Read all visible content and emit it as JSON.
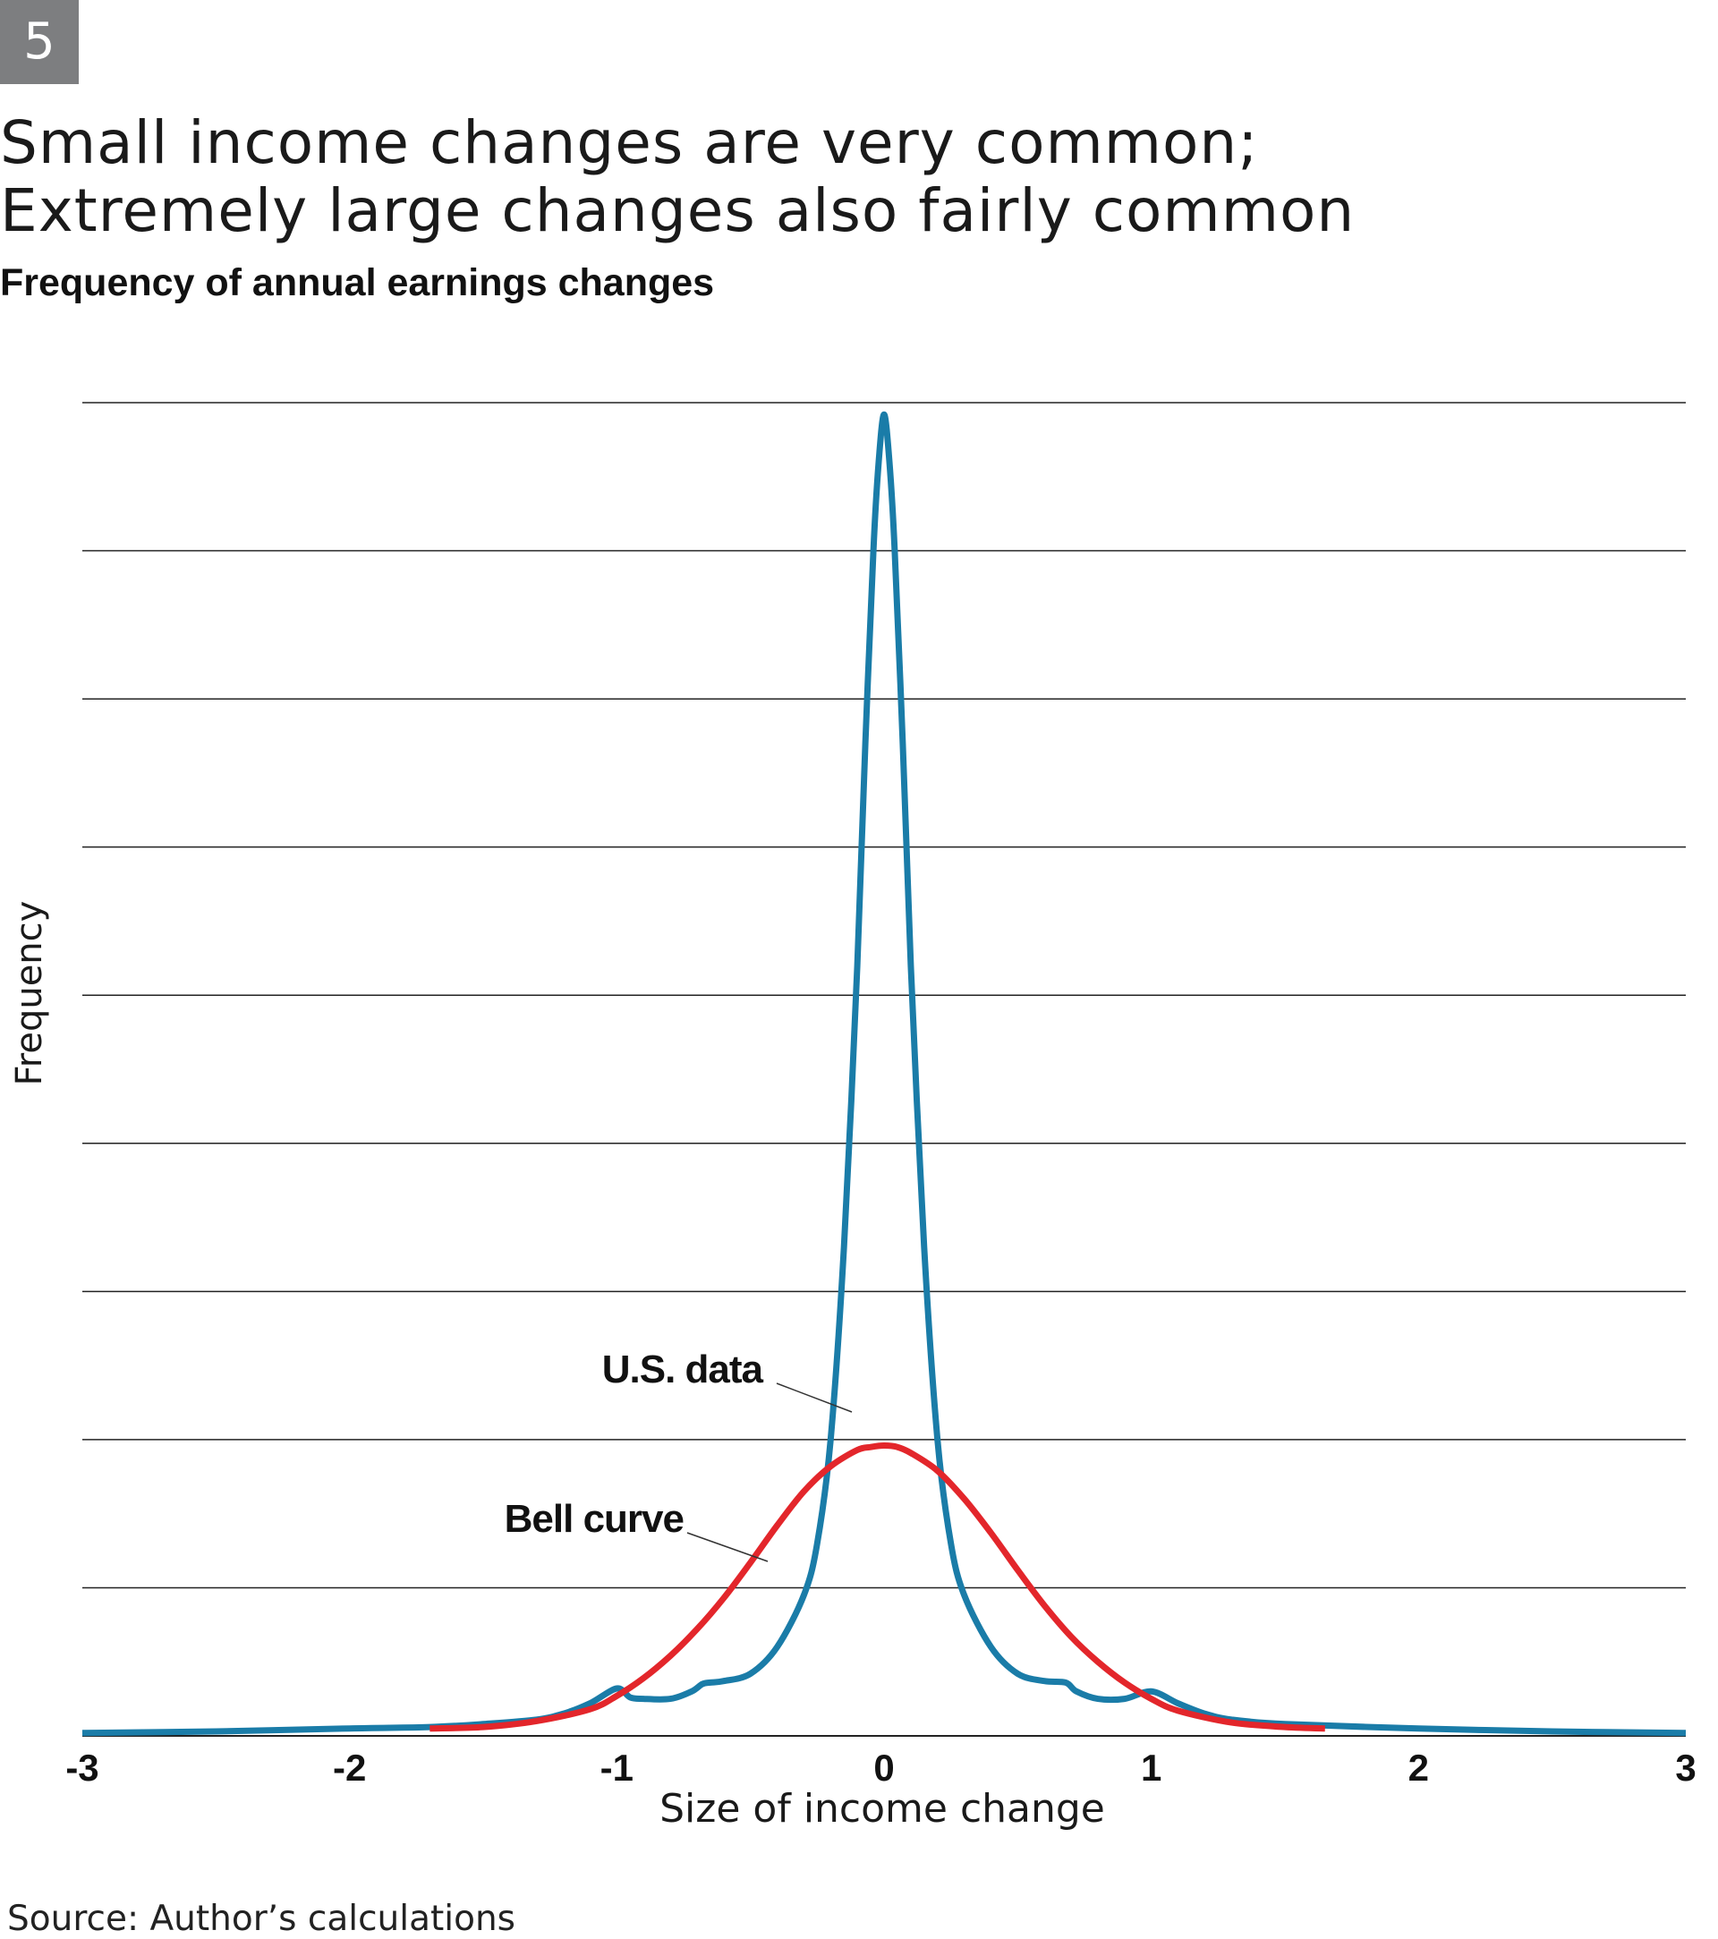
{
  "badge": "5",
  "title": {
    "line1": "Small income changes are very common;",
    "line2": "Extremely large changes also fairly common"
  },
  "subtitle": "Frequency of annual earnings changes",
  "source": "Source: Author’s calculations",
  "colors": {
    "us_data": "#1a7ca8",
    "bell_curve": "#e3262b",
    "grid": "#222222",
    "badge_bg": "#7d7e80"
  },
  "chart_data": {
    "type": "line",
    "xlabel": "Size of income change",
    "ylabel": "Frequency",
    "xlim": [
      -3,
      3
    ],
    "ylim": [
      0,
      9
    ],
    "x_ticks": [
      "-3",
      "-2",
      "-1",
      "0",
      "1",
      "2",
      "3"
    ],
    "y_tick_labels": false,
    "grid": "horizontal",
    "series": [
      {
        "name": "U.S. data",
        "color": "#1a7ca8",
        "x": [
          -3.0,
          -2.5,
          -2.0,
          -1.7,
          -1.5,
          -1.3,
          -1.2,
          -1.1,
          -1.0,
          -0.95,
          -0.9,
          -0.8,
          -0.72,
          -0.68,
          -0.65,
          -0.6,
          -0.5,
          -0.4,
          -0.3,
          -0.25,
          -0.2,
          -0.15,
          -0.1,
          -0.07,
          -0.04,
          -0.02,
          0.0,
          0.02,
          0.04,
          0.07,
          0.1,
          0.15,
          0.2,
          0.25,
          0.3,
          0.4,
          0.5,
          0.6,
          0.68,
          0.72,
          0.8,
          0.9,
          1.0,
          1.1,
          1.2,
          1.3,
          1.5,
          2.0,
          2.5,
          3.0
        ],
        "y": [
          0.02,
          0.03,
          0.05,
          0.06,
          0.08,
          0.11,
          0.15,
          0.22,
          0.32,
          0.26,
          0.25,
          0.25,
          0.3,
          0.35,
          0.36,
          0.37,
          0.42,
          0.6,
          0.95,
          1.3,
          2.0,
          3.3,
          5.2,
          6.7,
          8.0,
          8.6,
          8.92,
          8.6,
          8.0,
          6.7,
          5.2,
          3.3,
          2.0,
          1.3,
          0.95,
          0.6,
          0.42,
          0.37,
          0.36,
          0.3,
          0.25,
          0.25,
          0.3,
          0.22,
          0.15,
          0.11,
          0.08,
          0.05,
          0.03,
          0.02
        ]
      },
      {
        "name": "Bell curve",
        "color": "#e3262b",
        "x": [
          -1.7,
          -1.5,
          -1.3,
          -1.1,
          -1.0,
          -0.9,
          -0.8,
          -0.7,
          -0.6,
          -0.5,
          -0.4,
          -0.3,
          -0.2,
          -0.1,
          -0.05,
          0.0,
          0.05,
          0.1,
          0.2,
          0.3,
          0.4,
          0.5,
          0.6,
          0.7,
          0.8,
          0.9,
          1.0,
          1.1,
          1.3,
          1.5,
          1.65
        ],
        "y": [
          0.05,
          0.06,
          0.1,
          0.18,
          0.27,
          0.39,
          0.54,
          0.72,
          0.93,
          1.17,
          1.42,
          1.65,
          1.82,
          1.93,
          1.95,
          1.96,
          1.95,
          1.91,
          1.79,
          1.6,
          1.37,
          1.12,
          0.88,
          0.67,
          0.5,
          0.36,
          0.25,
          0.17,
          0.09,
          0.06,
          0.05
        ]
      }
    ],
    "annotations": [
      {
        "text": "U.S. data",
        "target_series": "U.S. data"
      },
      {
        "text": "Bell curve",
        "target_series": "Bell curve"
      }
    ]
  }
}
